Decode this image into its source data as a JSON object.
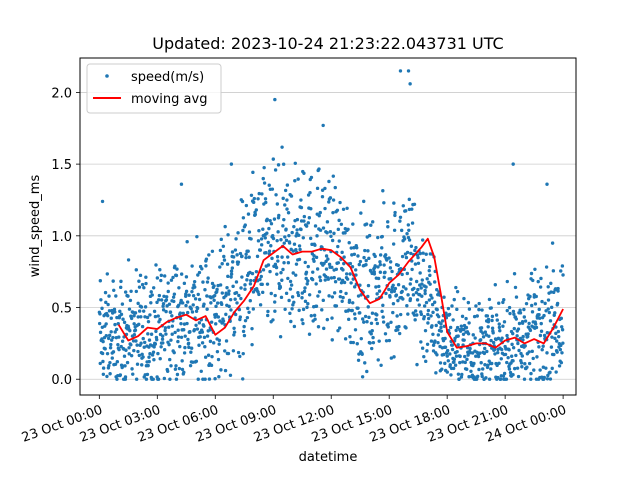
{
  "chart_data": {
    "type": "scatter",
    "title": "Updated: 2023-10-24 21:23:22.043731 UTC",
    "xlabel": "datetime",
    "ylabel": "wind_speed_ms",
    "xlim": [
      "2023-10-22 23:00",
      "2023-10-24 00:40"
    ],
    "ylim": [
      -0.11,
      2.24
    ],
    "x_ticks": [
      "2023-10-23 00:00",
      "2023-10-23 03:00",
      "2023-10-23 06:00",
      "2023-10-23 09:00",
      "2023-10-23 12:00",
      "2023-10-23 15:00",
      "2023-10-23 18:00",
      "2023-10-23 21:00",
      "2023-10-24 00:00"
    ],
    "x_tick_labels": [
      "23 Oct 00:00",
      "23 Oct 03:00",
      "23 Oct 06:00",
      "23 Oct 09:00",
      "23 Oct 12:00",
      "23 Oct 15:00",
      "23 Oct 18:00",
      "23 Oct 21:00",
      "24 Oct 00:00"
    ],
    "y_ticks": [
      0.0,
      0.5,
      1.0,
      1.5,
      2.0
    ],
    "y_tick_labels": [
      "0.0",
      "0.5",
      "1.0",
      "1.5",
      "2.0"
    ],
    "grid": "horizontal",
    "legend_position": "top-left",
    "series": [
      {
        "name": "speed(m/s)",
        "kind": "scatter",
        "color": "#1f77b4",
        "x_range": [
          "2023-10-23 00:00",
          "2023-10-24 00:00"
        ],
        "envelope_note_points_approx": 3000,
        "profile": [
          {
            "x": "2023-10-23 00:00",
            "y_mean": 0.3,
            "y_spread": 0.35
          },
          {
            "x": "2023-10-23 02:00",
            "y_mean": 0.32,
            "y_spread": 0.35
          },
          {
            "x": "2023-10-23 04:00",
            "y_mean": 0.4,
            "y_spread": 0.4
          },
          {
            "x": "2023-10-23 06:00",
            "y_mean": 0.45,
            "y_spread": 0.45
          },
          {
            "x": "2023-10-23 08:00",
            "y_mean": 0.8,
            "y_spread": 0.55
          },
          {
            "x": "2023-10-23 10:00",
            "y_mean": 0.88,
            "y_spread": 0.55
          },
          {
            "x": "2023-10-23 12:00",
            "y_mean": 0.88,
            "y_spread": 0.5
          },
          {
            "x": "2023-10-23 14:00",
            "y_mean": 0.58,
            "y_spread": 0.45
          },
          {
            "x": "2023-10-23 16:00",
            "y_mean": 0.8,
            "y_spread": 0.55
          },
          {
            "x": "2023-10-23 18:00",
            "y_mean": 0.25,
            "y_spread": 0.3
          },
          {
            "x": "2023-10-23 20:00",
            "y_mean": 0.22,
            "y_spread": 0.3
          },
          {
            "x": "2023-10-23 22:00",
            "y_mean": 0.3,
            "y_spread": 0.35
          },
          {
            "x": "2023-10-24 00:00",
            "y_mean": 0.45,
            "y_spread": 0.4
          }
        ],
        "outliers": [
          {
            "x": "2023-10-23 00:10",
            "y": 1.24
          },
          {
            "x": "2023-10-23 04:15",
            "y": 1.36
          },
          {
            "x": "2023-10-23 06:50",
            "y": 1.5
          },
          {
            "x": "2023-10-23 09:05",
            "y": 1.95
          },
          {
            "x": "2023-10-23 11:35",
            "y": 1.77
          },
          {
            "x": "2023-10-23 15:35",
            "y": 2.15
          },
          {
            "x": "2023-10-23 16:05",
            "y": 2.06
          },
          {
            "x": "2023-10-23 16:00",
            "y": 2.15
          },
          {
            "x": "2023-10-23 21:25",
            "y": 1.5
          },
          {
            "x": "2023-10-23 23:10",
            "y": 1.36
          }
        ]
      },
      {
        "name": "moving avg",
        "kind": "line",
        "color": "#ff0000",
        "x": [
          "2023-10-23 01:00",
          "2023-10-23 01:30",
          "2023-10-23 02:00",
          "2023-10-23 02:30",
          "2023-10-23 03:00",
          "2023-10-23 03:30",
          "2023-10-23 04:00",
          "2023-10-23 04:30",
          "2023-10-23 05:00",
          "2023-10-23 05:30",
          "2023-10-23 06:00",
          "2023-10-23 06:30",
          "2023-10-23 07:00",
          "2023-10-23 07:30",
          "2023-10-23 08:00",
          "2023-10-23 08:30",
          "2023-10-23 09:00",
          "2023-10-23 09:30",
          "2023-10-23 10:00",
          "2023-10-23 10:30",
          "2023-10-23 11:00",
          "2023-10-23 11:30",
          "2023-10-23 12:00",
          "2023-10-23 12:30",
          "2023-10-23 13:00",
          "2023-10-23 13:30",
          "2023-10-23 14:00",
          "2023-10-23 14:30",
          "2023-10-23 15:00",
          "2023-10-23 15:30",
          "2023-10-23 16:00",
          "2023-10-23 16:20",
          "2023-10-23 16:40",
          "2023-10-23 17:00",
          "2023-10-23 17:20",
          "2023-10-23 17:40",
          "2023-10-23 18:00",
          "2023-10-23 18:30",
          "2023-10-23 19:00",
          "2023-10-23 19:30",
          "2023-10-23 20:00",
          "2023-10-23 20:30",
          "2023-10-23 21:00",
          "2023-10-23 21:30",
          "2023-10-23 22:00",
          "2023-10-23 22:30",
          "2023-10-23 23:00",
          "2023-10-23 23:30",
          "2023-10-24 00:00"
        ],
        "y": [
          0.38,
          0.27,
          0.3,
          0.36,
          0.35,
          0.4,
          0.43,
          0.45,
          0.41,
          0.44,
          0.31,
          0.36,
          0.47,
          0.55,
          0.65,
          0.83,
          0.88,
          0.93,
          0.87,
          0.89,
          0.89,
          0.91,
          0.9,
          0.85,
          0.78,
          0.62,
          0.53,
          0.56,
          0.67,
          0.73,
          0.82,
          0.87,
          0.92,
          0.98,
          0.85,
          0.6,
          0.33,
          0.22,
          0.23,
          0.25,
          0.25,
          0.22,
          0.27,
          0.29,
          0.25,
          0.28,
          0.25,
          0.36,
          0.49
        ]
      }
    ]
  }
}
